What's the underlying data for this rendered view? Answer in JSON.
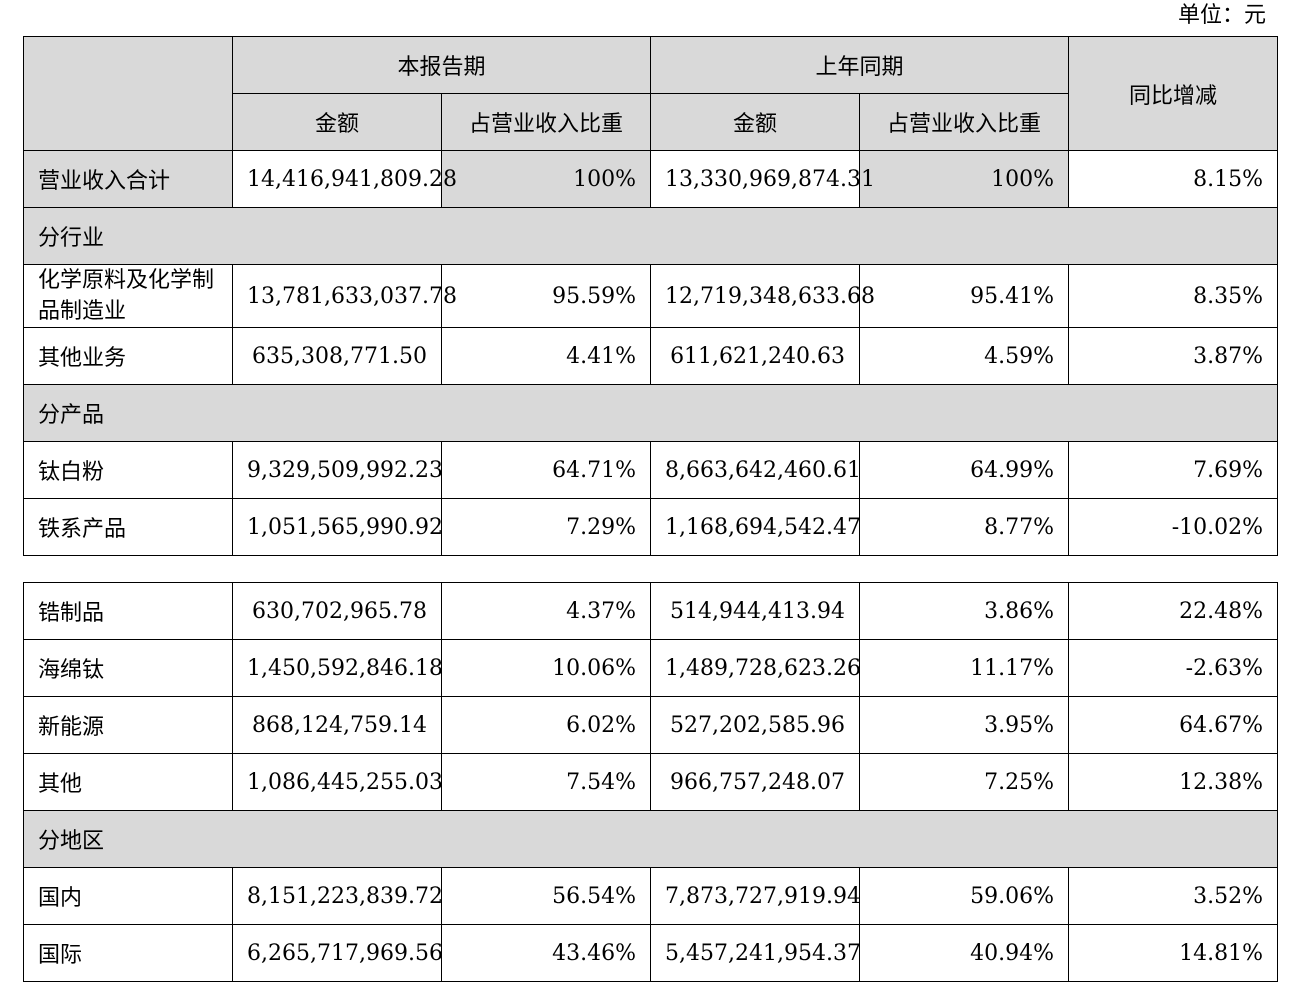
{
  "unit_label": "单位：元",
  "header": {
    "current_period": "本报告期",
    "prior_period": "上年同期",
    "yoy_change": "同比增减",
    "amount": "金额",
    "revenue_share": "占营业收入比重"
  },
  "total": {
    "label": "营业收入合计",
    "cur_amount": "14,416,941,809.28",
    "cur_share": "100%",
    "prev_amount": "13,330,969,874.31",
    "prev_share": "100%",
    "yoy": "8.15%"
  },
  "sections": {
    "by_industry": "分行业",
    "by_product": "分产品",
    "by_region": "分地区"
  },
  "rows": [
    {
      "label": "化学原料及化学制品制造业",
      "cur_amount": "13,781,633,037.78",
      "cur_share": "95.59%",
      "prev_amount": "12,719,348,633.68",
      "prev_share": "95.41%",
      "yoy": "8.35%"
    },
    {
      "label": "其他业务",
      "cur_amount": "635,308,771.50",
      "cur_share": "4.41%",
      "prev_amount": "611,621,240.63",
      "prev_share": "4.59%",
      "yoy": "3.87%"
    },
    {
      "label": "钛白粉",
      "cur_amount": "9,329,509,992.23",
      "cur_share": "64.71%",
      "prev_amount": "8,663,642,460.61",
      "prev_share": "64.99%",
      "yoy": "7.69%"
    },
    {
      "label": "铁系产品",
      "cur_amount": "1,051,565,990.92",
      "cur_share": "7.29%",
      "prev_amount": "1,168,694,542.47",
      "prev_share": "8.77%",
      "yoy": "-10.02%"
    },
    {
      "label": "锆制品",
      "cur_amount": "630,702,965.78",
      "cur_share": "4.37%",
      "prev_amount": "514,944,413.94",
      "prev_share": "3.86%",
      "yoy": "22.48%"
    },
    {
      "label": "海绵钛",
      "cur_amount": "1,450,592,846.18",
      "cur_share": "10.06%",
      "prev_amount": "1,489,728,623.26",
      "prev_share": "11.17%",
      "yoy": "-2.63%"
    },
    {
      "label": "新能源",
      "cur_amount": "868,124,759.14",
      "cur_share": "6.02%",
      "prev_amount": "527,202,585.96",
      "prev_share": "3.95%",
      "yoy": "64.67%"
    },
    {
      "label": "其他",
      "cur_amount": "1,086,445,255.03",
      "cur_share": "7.54%",
      "prev_amount": "966,757,248.07",
      "prev_share": "7.25%",
      "yoy": "12.38%"
    },
    {
      "label": "国内",
      "cur_amount": "8,151,223,839.72",
      "cur_share": "56.54%",
      "prev_amount": "7,873,727,919.94",
      "prev_share": "59.06%",
      "yoy": "3.52%"
    },
    {
      "label": "国际",
      "cur_amount": "6,265,717,969.56",
      "cur_share": "43.46%",
      "prev_amount": "5,457,241,954.37",
      "prev_share": "40.94%",
      "yoy": "14.81%"
    }
  ],
  "colors": {
    "header_fill": "#d9d9d9",
    "border": "#000000"
  }
}
